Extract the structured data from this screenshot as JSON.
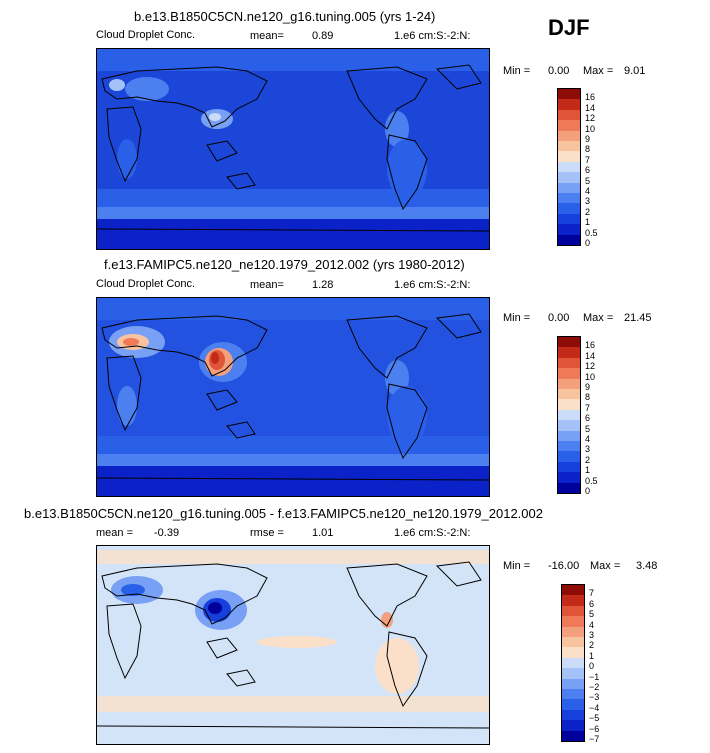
{
  "season": "DJF",
  "palette": {
    "seq": [
      "#00009a",
      "#0a22c8",
      "#1640dc",
      "#2a60e8",
      "#4c80f0",
      "#78a0f4",
      "#a4c2f8",
      "#cadcf8",
      "#fae0c8",
      "#f8c4a0",
      "#f4a07c",
      "#ee7a58",
      "#e05438",
      "#c42a18",
      "#8e0c06"
    ],
    "diff": [
      "#00009a",
      "#0a22c8",
      "#1640dc",
      "#2a60e8",
      "#4c80f0",
      "#78a0f4",
      "#a4c2f8",
      "#cadcf8",
      "#fae0c8",
      "#f8c4a0",
      "#f4a07c",
      "#ee7a58",
      "#e05438",
      "#c42a18",
      "#8e0c06"
    ]
  },
  "panels": [
    {
      "title": "b.e13.B1850C5CN.ne120_g16.tuning.005 (yrs 1-24)",
      "variable": "Cloud Droplet Conc.",
      "stat_label": "mean=",
      "stat_value": "0.89",
      "units": "1.e6 cm:S:-2:N:",
      "min_label": "Min =",
      "min_value": "0.00",
      "max_label": "Max =",
      "max_value": "9.01",
      "colorbar_labels": [
        "16",
        "14",
        "12",
        "10",
        "9",
        "8",
        "7",
        "6",
        "5",
        "4",
        "3",
        "2",
        "1",
        "0.5",
        "0"
      ],
      "map_mean_color": "#1c46d8"
    },
    {
      "title": "f.e13.FAMIPC5.ne120_ne120.1979_2012.002 (yrs 1980-2012)",
      "variable": "Cloud Droplet Conc.",
      "stat_label": "mean=",
      "stat_value": "1.28",
      "units": "1.e6 cm:S:-2:N:",
      "min_label": "Min =",
      "min_value": "0.00",
      "max_label": "Max =",
      "max_value": "21.45",
      "colorbar_labels": [
        "16",
        "14",
        "12",
        "10",
        "9",
        "8",
        "7",
        "6",
        "5",
        "4",
        "3",
        "2",
        "1",
        "0.5",
        "0"
      ],
      "map_mean_color": "#2452e0"
    },
    {
      "title": "b.e13.B1850C5CN.ne120_g16.tuning.005 - f.e13.FAMIPC5.ne120_ne120.1979_2012.002",
      "stat_label": "mean =",
      "stat_value": "-0.39",
      "rmse_label": "rmse =",
      "rmse_value": "1.01",
      "units": "1.e6 cm:S:-2:N:",
      "min_label": "Min =",
      "min_value": "-16.00",
      "max_label": "Max =",
      "max_value": "3.48",
      "colorbar_labels": [
        "7",
        "6",
        "5",
        "4",
        "3",
        "2",
        "1",
        "0",
        "−1",
        "−2",
        "−3",
        "−4",
        "−5",
        "−6",
        "−7"
      ],
      "map_mean_color": "#d4e4f8"
    }
  ]
}
